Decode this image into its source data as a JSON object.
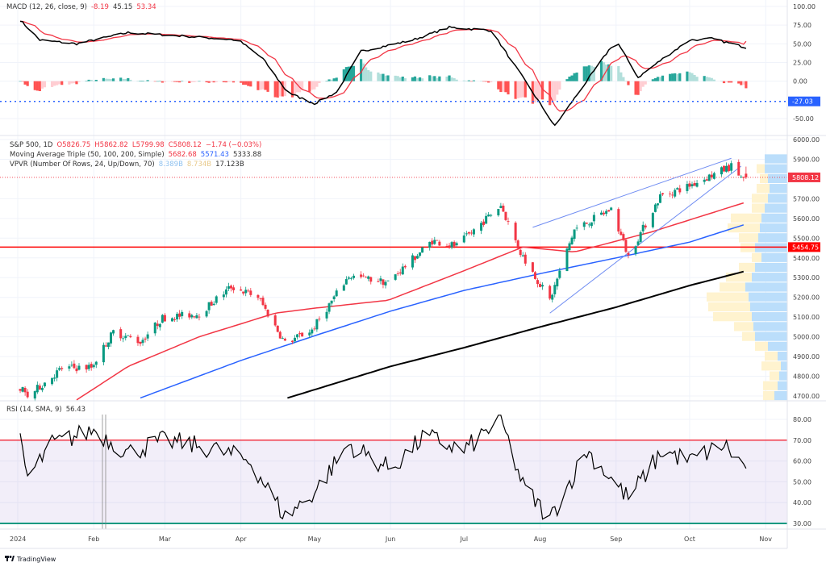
{
  "branding": {
    "logo_text": "TradingView"
  },
  "colors": {
    "up": "#089981",
    "down": "#f23645",
    "ma50": "#f23645",
    "ma100": "#2962ff",
    "ma200": "#000000",
    "macd": "#000000",
    "signal": "#f23645",
    "rsi": "#000000",
    "rsi_upper": "#f23645",
    "rsi_lower": "#089981",
    "vp_up": "#bbdefb",
    "vp_down": "#fff3cf",
    "support": "#ff0000",
    "trendline": "#6f8cf2"
  },
  "chart_data": [
    {
      "type": "line",
      "pane": "macd",
      "legend": {
        "title": "MACD (12, 26, close, 9)",
        "hist": "-8.19",
        "macd": "45.15",
        "signal": "53.34"
      },
      "y_ticks": [
        "100.00",
        "75.00",
        "50.00",
        "25.00",
        "0.00",
        "-50.00"
      ],
      "ylim": [
        -70,
        100
      ],
      "marker": {
        "value": -27.03,
        "label": "-27.03"
      },
      "macd_anchors": [
        [
          "2024-01-01",
          85
        ],
        [
          "2024-01-10",
          55
        ],
        [
          "2024-01-25",
          50
        ],
        [
          "2024-02-15",
          65
        ],
        [
          "2024-03-10",
          60
        ],
        [
          "2024-03-31",
          55
        ],
        [
          "2024-04-10",
          30
        ],
        [
          "2024-04-20",
          -15
        ],
        [
          "2024-05-01",
          -30
        ],
        [
          "2024-05-10",
          -15
        ],
        [
          "2024-05-20",
          40
        ],
        [
          "2024-06-10",
          55
        ],
        [
          "2024-06-25",
          72
        ],
        [
          "2024-07-12",
          68
        ],
        [
          "2024-07-25",
          5
        ],
        [
          "2024-08-07",
          -60
        ],
        [
          "2024-08-20",
          0
        ],
        [
          "2024-09-01",
          55
        ],
        [
          "2024-09-10",
          5
        ],
        [
          "2024-09-20",
          30
        ],
        [
          "2024-10-01",
          55
        ],
        [
          "2024-10-10",
          57
        ],
        [
          "2024-10-24",
          45.15
        ]
      ]
    },
    {
      "type": "candlestick",
      "pane": "price",
      "legend": {
        "symbol": "S&P 500, 1D",
        "open": "O5826.75",
        "high": "H5862.82",
        "low": "L5799.98",
        "close": "C5808.12",
        "change": "−1.74 (−0.03%)",
        "ma_title": "Moving Average Triple (50, 100, 200, Simple)",
        "ma50": "5682.68",
        "ma100": "5571.43",
        "ma200": "5333.88",
        "vpvr_title": "VPVR (Number Of Rows, 24, Up/Down, 70)",
        "vp_up": "8.389B",
        "vp_down": "8.734B",
        "vp_total": "17.123B"
      },
      "y_ticks": [
        "6000.00",
        "5900.00",
        "5700.00",
        "5600.00",
        "5500.00",
        "5400.00",
        "5300.00",
        "5200.00",
        "5100.00",
        "5000.00",
        "4900.00",
        "4800.00",
        "4700.00"
      ],
      "ylim": [
        4685,
        6020
      ],
      "last_price": {
        "value": 5808.12,
        "label": "5808.12"
      },
      "support": {
        "value": 5454.75,
        "label": "5454.75"
      },
      "last_bar": {
        "open": 5826.75,
        "high": 5862.82,
        "low": 5799.98,
        "close": 5808.12
      },
      "close_anchors": [
        [
          "2024-01-02",
          4742
        ],
        [
          "2024-01-05",
          4697
        ],
        [
          "2024-01-19",
          4840
        ],
        [
          "2024-01-31",
          4846
        ],
        [
          "2024-02-09",
          5026
        ],
        [
          "2024-02-20",
          4975
        ],
        [
          "2024-02-29",
          5096
        ],
        [
          "2024-03-15",
          5117
        ],
        [
          "2024-03-28",
          5254
        ],
        [
          "2024-04-08",
          5202
        ],
        [
          "2024-04-19",
          4967
        ],
        [
          "2024-04-30",
          5035
        ],
        [
          "2024-05-15",
          5308
        ],
        [
          "2024-05-31",
          5277
        ],
        [
          "2024-06-18",
          5487
        ],
        [
          "2024-06-28",
          5460
        ],
        [
          "2024-07-16",
          5667
        ],
        [
          "2024-07-24",
          5427
        ],
        [
          "2024-08-05",
          5186
        ],
        [
          "2024-08-15",
          5543
        ],
        [
          "2024-08-30",
          5648
        ],
        [
          "2024-09-06",
          5408
        ],
        [
          "2024-09-19",
          5713
        ],
        [
          "2024-09-30",
          5762
        ],
        [
          "2024-10-18",
          5864
        ],
        [
          "2024-10-23",
          5797
        ]
      ],
      "sma50": [
        [
          "2024-01-25",
          4680
        ],
        [
          "2024-02-15",
          4850
        ],
        [
          "2024-03-15",
          5000
        ],
        [
          "2024-04-15",
          5120
        ],
        [
          "2024-05-01",
          5145
        ],
        [
          "2024-05-31",
          5185
        ],
        [
          "2024-06-30",
          5330
        ],
        [
          "2024-07-25",
          5455
        ],
        [
          "2024-08-15",
          5430
        ],
        [
          "2024-09-15",
          5530
        ],
        [
          "2024-10-24",
          5682.68
        ]
      ],
      "sma100": [
        [
          "2024-02-20",
          4690
        ],
        [
          "2024-04-01",
          4880
        ],
        [
          "2024-05-01",
          5005
        ],
        [
          "2024-06-01",
          5130
        ],
        [
          "2024-07-01",
          5235
        ],
        [
          "2024-08-01",
          5320
        ],
        [
          "2024-09-01",
          5400
        ],
        [
          "2024-10-01",
          5480
        ],
        [
          "2024-10-24",
          5571.43
        ]
      ],
      "sma200": [
        [
          "2024-04-20",
          4690
        ],
        [
          "2024-06-01",
          4850
        ],
        [
          "2024-07-01",
          4945
        ],
        [
          "2024-08-01",
          5050
        ],
        [
          "2024-09-01",
          5150
        ],
        [
          "2024-10-01",
          5260
        ],
        [
          "2024-10-24",
          5333.88
        ]
      ],
      "trendlines": [
        [
          [
            "2024-07-29",
            5555
          ],
          [
            "2024-10-18",
            5905
          ]
        ],
        [
          [
            "2024-08-05",
            5120
          ],
          [
            "2024-10-22",
            5865
          ]
        ]
      ],
      "volume_profile": {
        "row_start": 4675,
        "row_size": 50,
        "rows": [
          [
            40,
            35
          ],
          [
            30,
            45
          ],
          [
            25,
            30
          ],
          [
            20,
            60
          ],
          [
            30,
            40
          ],
          [
            60,
            40
          ],
          [
            100,
            40
          ],
          [
            105,
            60
          ],
          [
            110,
            120
          ],
          [
            115,
            130
          ],
          [
            120,
            130
          ],
          [
            130,
            80
          ],
          [
            110,
            80
          ],
          [
            100,
            50
          ],
          [
            80,
            30
          ],
          [
            100,
            45
          ],
          [
            90,
            60
          ],
          [
            85,
            100
          ],
          [
            80,
            95
          ],
          [
            70,
            40
          ],
          [
            60,
            50
          ],
          [
            55,
            40
          ],
          [
            60,
            25
          ],
          [
            70,
            25
          ],
          [
            70,
            0
          ]
        ]
      }
    },
    {
      "type": "line",
      "pane": "rsi",
      "legend": {
        "title": "RSI (14, SMA, 9)",
        "value": "56.43"
      },
      "y_ticks": [
        "80.00",
        "70.00",
        "60.00",
        "50.00",
        "40.00",
        "30.00"
      ],
      "ylim": [
        30,
        80
      ],
      "bands": [
        30,
        70
      ],
      "anchors": [
        [
          "2024-01-01",
          75
        ],
        [
          "2024-01-05",
          52
        ],
        [
          "2024-01-15",
          68
        ],
        [
          "2024-02-01",
          75
        ],
        [
          "2024-02-15",
          64
        ],
        [
          "2024-03-01",
          70
        ],
        [
          "2024-03-20",
          66
        ],
        [
          "2024-04-05",
          60
        ],
        [
          "2024-04-19",
          33
        ],
        [
          "2024-05-01",
          45
        ],
        [
          "2024-05-15",
          68
        ],
        [
          "2024-06-01",
          56
        ],
        [
          "2024-06-15",
          72
        ],
        [
          "2024-07-01",
          65
        ],
        [
          "2024-07-16",
          80
        ],
        [
          "2024-07-25",
          48
        ],
        [
          "2024-08-05",
          32
        ],
        [
          "2024-08-20",
          65
        ],
        [
          "2024-09-06",
          42
        ],
        [
          "2024-09-20",
          65
        ],
        [
          "2024-10-01",
          60
        ],
        [
          "2024-10-15",
          68
        ],
        [
          "2024-10-24",
          56.43
        ]
      ]
    }
  ],
  "x_axis": {
    "labels": [
      [
        "2024",
        "2024-01-01"
      ],
      [
        "Feb",
        "2024-02-01"
      ],
      [
        "Mar",
        "2024-03-01"
      ],
      [
        "Apr",
        "2024-04-01"
      ],
      [
        "May",
        "2024-05-01"
      ],
      [
        "Jun",
        "2024-06-01"
      ],
      [
        "Jul",
        "2024-07-01"
      ],
      [
        "Aug",
        "2024-08-01"
      ],
      [
        "Sep",
        "2024-09-01"
      ],
      [
        "Oct",
        "2024-10-01"
      ],
      [
        "Nov",
        "2024-11-01"
      ]
    ]
  }
}
